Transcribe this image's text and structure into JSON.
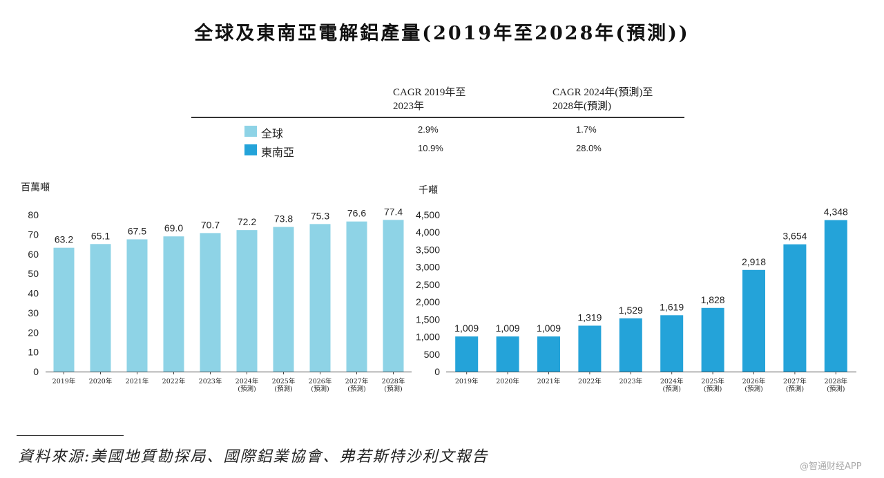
{
  "title": "全球及東南亞電解鋁產量(2019年至2028年(預測))",
  "cagr_table": {
    "header1_line1": "CAGR 2019年至",
    "header1_line2": "2023年",
    "header2_line1": "CAGR 2024年(預測)至",
    "header2_line2": "2028年(預測)",
    "rows": [
      {
        "label": "全球",
        "color": "#8ed3e6",
        "cagr_2019_2023": "2.9%",
        "cagr_2024_2028": "1.7%"
      },
      {
        "label": "東南亞",
        "color": "#24a3d9",
        "cagr_2019_2023": "10.9%",
        "cagr_2024_2028": "28.0%"
      }
    ]
  },
  "chart_data": [
    {
      "type": "bar",
      "name": "全球",
      "unit_label": "百萬噸",
      "color": "#8ed3e6",
      "categories": [
        "2019年",
        "2020年",
        "2021年",
        "2022年",
        "2023年",
        "2024年|(預測)",
        "2025年|(預測)",
        "2026年|(預測)",
        "2027年|(預測)",
        "2028年|(預測)"
      ],
      "values": [
        63.2,
        65.1,
        67.5,
        69.0,
        70.7,
        72.2,
        73.8,
        75.3,
        76.6,
        77.4
      ],
      "value_labels": [
        "63.2",
        "65.1",
        "67.5",
        "69.0",
        "70.7",
        "72.2",
        "73.8",
        "75.3",
        "76.6",
        "77.4"
      ],
      "ylim": [
        0,
        80
      ],
      "yticks": [
        0,
        10,
        20,
        30,
        40,
        50,
        60,
        70,
        80
      ],
      "ytick_labels": [
        "0",
        "10",
        "20",
        "30",
        "40",
        "50",
        "60",
        "70",
        "80"
      ]
    },
    {
      "type": "bar",
      "name": "東南亞",
      "unit_label": "千噸",
      "color": "#24a3d9",
      "categories": [
        "2019年",
        "2020年",
        "2021年",
        "2022年",
        "2023年",
        "2024年|(預測)",
        "2025年|(預測)",
        "2026年|(預測)",
        "2027年|(預測)",
        "2028年|(預測)"
      ],
      "values": [
        1009,
        1009,
        1009,
        1319,
        1529,
        1619,
        1828,
        2918,
        3654,
        4348
      ],
      "value_labels": [
        "1,009",
        "1,009",
        "1,009",
        "1,319",
        "1,529",
        "1,619",
        "1,828",
        "2,918",
        "3,654",
        "4,348"
      ],
      "ylim": [
        0,
        4500
      ],
      "yticks": [
        0,
        500,
        1000,
        1500,
        2000,
        2500,
        3000,
        3500,
        4000,
        4500
      ],
      "ytick_labels": [
        "0",
        "500",
        "1,000",
        "1,500",
        "2,000",
        "2,500",
        "3,000",
        "3,500",
        "4,000",
        "4,500"
      ]
    }
  ],
  "source": "資料來源:美國地質勘探局、國際鋁業協會、弗若斯特沙利文報告",
  "watermark": "@智通财经APP"
}
